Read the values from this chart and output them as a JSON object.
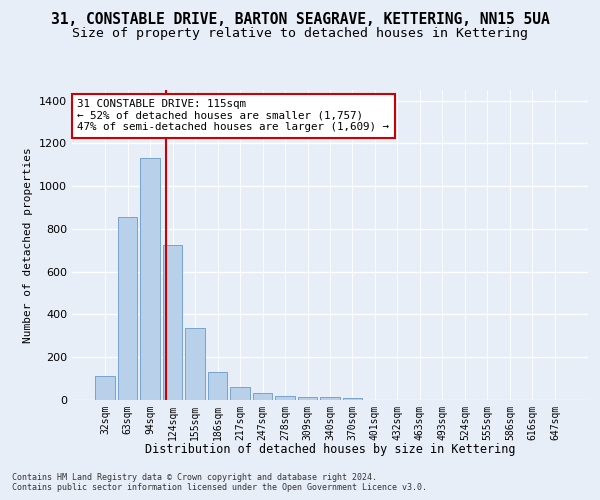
{
  "title": "31, CONSTABLE DRIVE, BARTON SEAGRAVE, KETTERING, NN15 5UA",
  "subtitle": "Size of property relative to detached houses in Kettering",
  "xlabel": "Distribution of detached houses by size in Kettering",
  "ylabel": "Number of detached properties",
  "footer_line1": "Contains HM Land Registry data © Crown copyright and database right 2024.",
  "footer_line2": "Contains public sector information licensed under the Open Government Licence v3.0.",
  "bar_labels": [
    "32sqm",
    "63sqm",
    "94sqm",
    "124sqm",
    "155sqm",
    "186sqm",
    "217sqm",
    "247sqm",
    "278sqm",
    "309sqm",
    "340sqm",
    "370sqm",
    "401sqm",
    "432sqm",
    "463sqm",
    "493sqm",
    "524sqm",
    "555sqm",
    "586sqm",
    "616sqm",
    "647sqm"
  ],
  "bar_values": [
    110,
    855,
    1130,
    725,
    335,
    130,
    63,
    35,
    20,
    15,
    14,
    8,
    0,
    0,
    0,
    0,
    0,
    0,
    0,
    0,
    0
  ],
  "bar_color": "#b8d0ea",
  "bar_edge_color": "#6699cc",
  "annotation_title": "31 CONSTABLE DRIVE: 115sqm",
  "annotation_line2": "← 52% of detached houses are smaller (1,757)",
  "annotation_line3": "47% of semi-detached houses are larger (1,609) →",
  "vline_color": "#cc0000",
  "vline_x": 2.72,
  "ylim": [
    0,
    1450
  ],
  "yticks": [
    0,
    200,
    400,
    600,
    800,
    1000,
    1200,
    1400
  ],
  "bg_color": "#e8eef8",
  "plot_bg_color": "#e8eef8",
  "grid_color": "#ffffff",
  "title_fontsize": 10.5,
  "subtitle_fontsize": 9.5,
  "ylabel_fontsize": 8,
  "xlabel_fontsize": 8.5,
  "tick_fontsize": 7,
  "annotation_fontsize": 7.8,
  "footer_fontsize": 6.0
}
